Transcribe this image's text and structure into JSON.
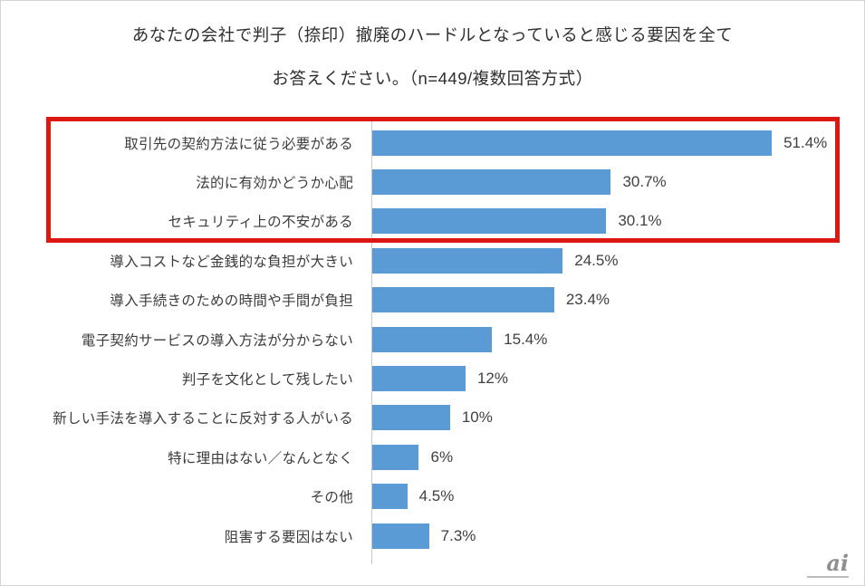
{
  "title": {
    "line1": "あなたの会社で判子（捺印）撤廃のハードルとなっていると感じる要因を全て",
    "line2": "お答えください。（n=449/複数回答方式）"
  },
  "chart_data": {
    "type": "bar",
    "orientation": "horizontal",
    "title": "あなたの会社で判子（捺印）撤廃のハードルとなっていると感じる要因を全てお答えください。（n=449/複数回答方式）",
    "sample_note": "n=449/複数回答方式",
    "categories": [
      "取引先の契約方法に従う必要がある",
      "法的に有効かどうか心配",
      "セキュリティ上の不安がある",
      "導入コストなど金銭的な負担が大きい",
      "導入手続きのための時間や手間が負担",
      "電子契約サービスの導入方法が分からない",
      "判子を文化として残したい",
      "新しい手法を導入することに反対する人がいる",
      "特に理由はない／なんとなく",
      "その他",
      "阻害する要因はない"
    ],
    "values": [
      51.4,
      30.7,
      30.1,
      24.5,
      23.4,
      15.4,
      12,
      10,
      6,
      4.5,
      7.3
    ],
    "value_labels": [
      "51.4%",
      "30.7%",
      "30.1%",
      "24.5%",
      "23.4%",
      "15.4%",
      "12%",
      "10%",
      "6%",
      "4.5%",
      "7.3%"
    ],
    "xlim": [
      0,
      55
    ],
    "grid": false,
    "legend": "none",
    "bar_color": "#5b9bd5",
    "axis_color": "#c9c9c9",
    "highlight": {
      "rows": [
        0,
        1,
        2
      ],
      "box_color": "#dd1712"
    }
  },
  "watermark": {
    "text": "ai"
  }
}
